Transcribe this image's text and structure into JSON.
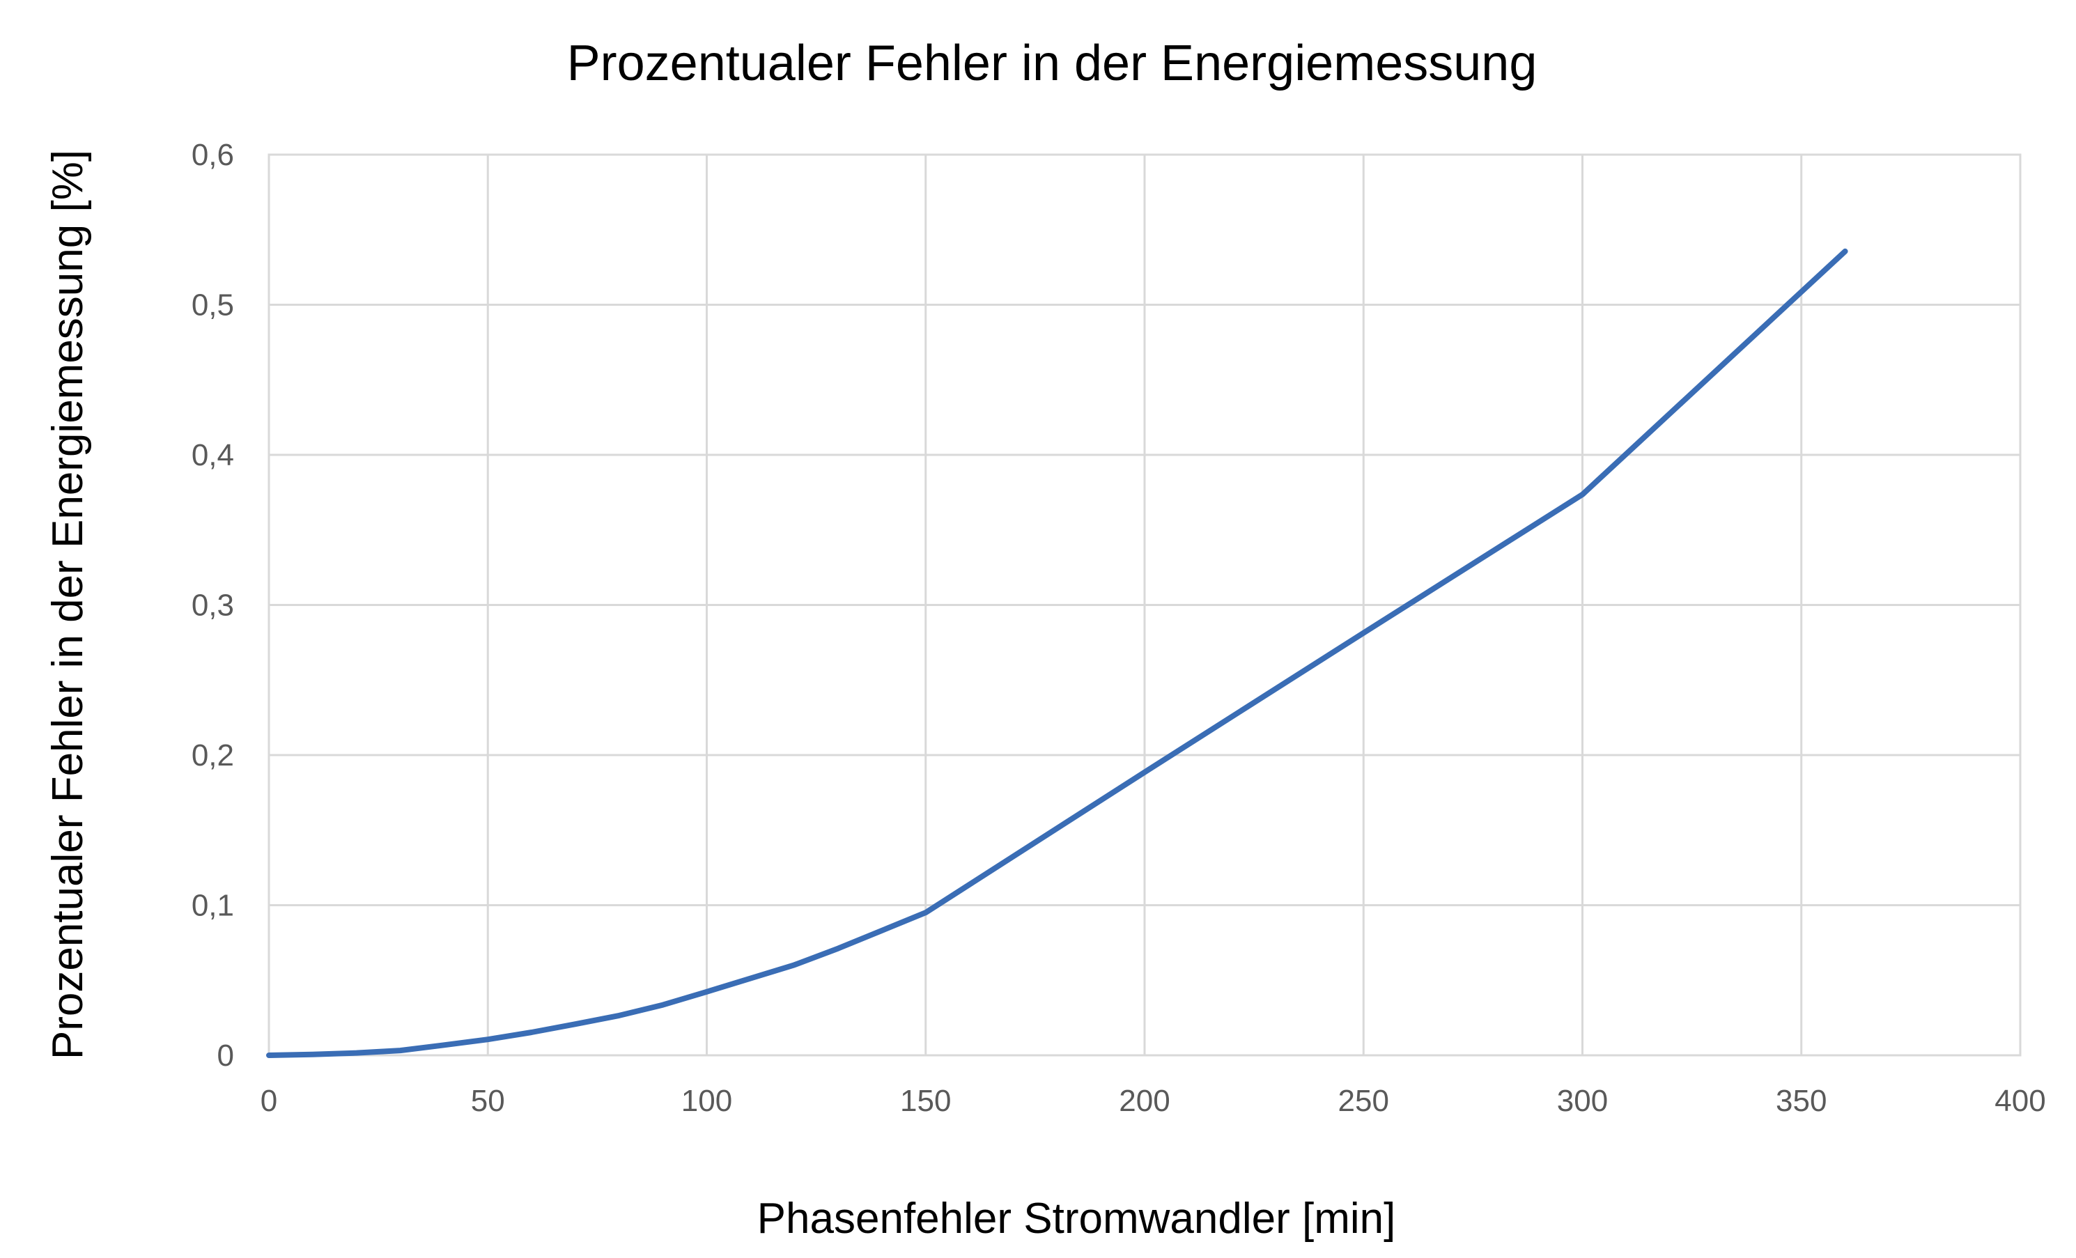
{
  "chart_data": {
    "type": "line",
    "title": "Prozentualer Fehler in der Energiemessung",
    "xlabel": "Phasenfehler Stromwandler [min]",
    "ylabel": "Prozentualer Fehler in der Energiemessung [%]",
    "xlim": [
      0,
      400
    ],
    "ylim": [
      0,
      0.6
    ],
    "x_ticks": [
      0,
      50,
      100,
      150,
      200,
      250,
      300,
      350,
      400
    ],
    "y_ticks": [
      0,
      0.1,
      0.2,
      0.3,
      0.4,
      0.5,
      0.6
    ],
    "x_tick_labels": [
      "0",
      "50",
      "100",
      "150",
      "200",
      "250",
      "300",
      "350",
      "400"
    ],
    "y_tick_labels": [
      "0",
      "0,1",
      "0,2",
      "0,3",
      "0,4",
      "0,5",
      "0,6"
    ],
    "grid": true,
    "legend": "none",
    "series": [
      {
        "color": "#3a6db5",
        "x": [
          0,
          10,
          20,
          30,
          40,
          50,
          60,
          70,
          80,
          90,
          100,
          120,
          130,
          150,
          200,
          250,
          300,
          360
        ],
        "y": [
          0,
          0.0006,
          0.0016,
          0.0032,
          0.0068,
          0.0106,
          0.0153,
          0.0208,
          0.0265,
          0.0336,
          0.0423,
          0.0602,
          0.0712,
          0.0951,
          0.1886,
          0.2814,
          0.3736,
          0.5356
        ]
      }
    ]
  }
}
